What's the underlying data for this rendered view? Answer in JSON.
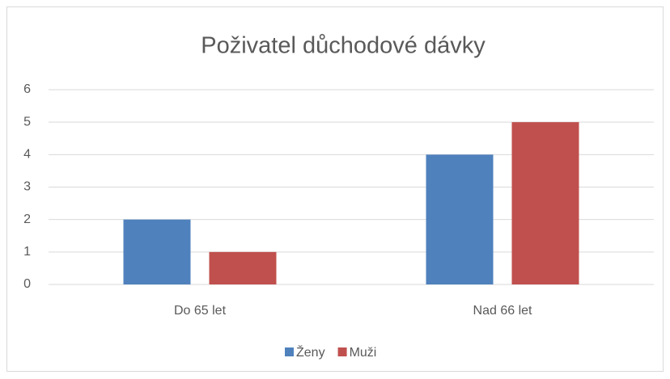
{
  "chart_data": {
    "type": "bar",
    "title": "Poživatel důchodové dávky",
    "categories": [
      "Do 65 let",
      "Nad 66 let"
    ],
    "series": [
      {
        "name": "Ženy",
        "color": "#4f81bd",
        "values": [
          2,
          4
        ]
      },
      {
        "name": "Muži",
        "color": "#c0504d",
        "values": [
          1,
          5
        ]
      }
    ],
    "ylim": [
      0,
      6
    ],
    "yticks": [
      0,
      1,
      2,
      3,
      4,
      5,
      6
    ],
    "grid": true,
    "legend": "bottom"
  }
}
